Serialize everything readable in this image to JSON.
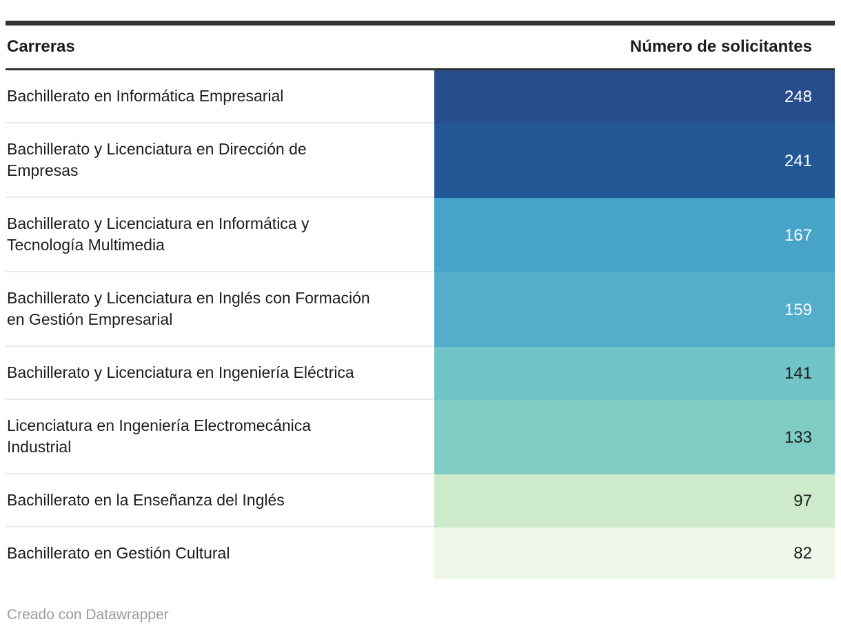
{
  "table": {
    "header": {
      "careers": "Carreras",
      "applicants": "Número de solicitantes"
    },
    "rows": [
      {
        "label": "Bachillerato en Informática Empresarial",
        "value": "248",
        "color": "#274d8c",
        "text_color": "#ffffff"
      },
      {
        "label": "Bachillerato y Licenciatura en Dirección de Empresas",
        "value": "241",
        "color": "#225896",
        "text_color": "#ffffff"
      },
      {
        "label": "Bachillerato y Licenciatura en Informática y Tecnología Multimedia",
        "value": "167",
        "color": "#47a3c8",
        "text_color": "#ffffff"
      },
      {
        "label": "Bachillerato y Licenciatura en Inglés con Formación en Gestión Empresarial",
        "value": "159",
        "color": "#54adca",
        "text_color": "#ffffff"
      },
      {
        "label": "Bachillerato y Licenciatura en Ingeniería Eléctrica",
        "value": "141",
        "color": "#70c4c6",
        "text_color": "#1d1d1d"
      },
      {
        "label": "Licenciatura en Ingeniería Electromecánica Industrial",
        "value": "133",
        "color": "#7fccc4",
        "text_color": "#1d1d1d"
      },
      {
        "label": "Bachillerato en la Enseñanza del Inglés",
        "value": "97",
        "color": "#cdeacb",
        "text_color": "#1d1d1d"
      },
      {
        "label": "Bachillerato en Gestión Cultural",
        "value": "82",
        "color": "#eef7e9",
        "text_color": "#1d1d1d"
      }
    ]
  },
  "footer": {
    "attribution": "Creado con Datawrapper"
  },
  "colors": {
    "rule": "#333333",
    "row_divider": "#e9e9e9",
    "header_text": "#1d1d1d",
    "body_text": "#1d1d1d",
    "footer_text": "#9b9b9b"
  },
  "chart_data": {
    "type": "table",
    "title": "",
    "columns": [
      "Carreras",
      "Número de solicitantes"
    ],
    "categories": [
      "Bachillerato en Informática Empresarial",
      "Bachillerato y Licenciatura en Dirección de Empresas",
      "Bachillerato y Licenciatura en Informática y Tecnología Multimedia",
      "Bachillerato y Licenciatura en Inglés con Formación en Gestión Empresarial",
      "Bachillerato y Licenciatura en Ingeniería Eléctrica",
      "Licenciatura en Ingeniería Electromecánica Industrial",
      "Bachillerato en la Enseñanza del Inglés",
      "Bachillerato en Gestión Cultural"
    ],
    "values": [
      248,
      241,
      167,
      159,
      141,
      133,
      97,
      82
    ],
    "heatmap": {
      "column": "Número de solicitantes",
      "scale_direction": "high-to-low (dark blue to pale green)",
      "cell_colors": [
        "#274d8c",
        "#225896",
        "#47a3c8",
        "#54adca",
        "#70c4c6",
        "#7fccc4",
        "#cdeacb",
        "#eef7e9"
      ]
    },
    "legend": "none",
    "attribution": "Creado con Datawrapper"
  }
}
